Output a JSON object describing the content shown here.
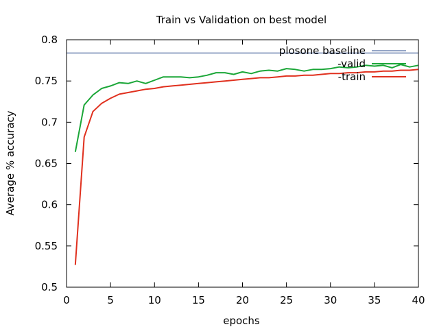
{
  "chart_data": {
    "type": "line",
    "title": "Train vs Validation on best model",
    "xlabel": "epochs",
    "ylabel": "Average % accuracy",
    "xlim": [
      0,
      40
    ],
    "ylim": [
      0.5,
      0.8
    ],
    "xticks": [
      0,
      5,
      10,
      15,
      20,
      25,
      30,
      35,
      40
    ],
    "yticks": [
      0.5,
      0.55,
      0.6,
      0.65,
      0.7,
      0.75,
      0.8
    ],
    "xtick_labels": [
      "0",
      "5",
      "10",
      "15",
      "20",
      "25",
      "30",
      "35",
      "40"
    ],
    "ytick_labels": [
      "0.5",
      "0.55",
      "0.6",
      "0.65",
      "0.7",
      "0.75",
      "0.8"
    ],
    "grid": false,
    "legend_position": "top-right",
    "baseline": {
      "name": "plosone baseline",
      "value": 0.784,
      "color": "#2a4b8d"
    },
    "series": [
      {
        "name": "-valid",
        "color": "#1aa637",
        "x": [
          1,
          2,
          3,
          4,
          5,
          6,
          7,
          8,
          9,
          10,
          11,
          12,
          13,
          14,
          15,
          16,
          17,
          18,
          19,
          20,
          21,
          22,
          23,
          24,
          25,
          26,
          27,
          28,
          29,
          30,
          31,
          32,
          33,
          34,
          35,
          36,
          37,
          38,
          39,
          40
        ],
        "y": [
          0.664,
          0.721,
          0.733,
          0.741,
          0.744,
          0.748,
          0.747,
          0.75,
          0.747,
          0.751,
          0.755,
          0.755,
          0.755,
          0.754,
          0.755,
          0.757,
          0.76,
          0.76,
          0.758,
          0.761,
          0.759,
          0.762,
          0.763,
          0.762,
          0.765,
          0.764,
          0.762,
          0.764,
          0.764,
          0.765,
          0.767,
          0.766,
          0.767,
          0.769,
          0.768,
          0.769,
          0.766,
          0.77,
          0.767,
          0.769
        ]
      },
      {
        "name": "-train",
        "color": "#e0301e",
        "x": [
          1,
          2,
          3,
          4,
          5,
          6,
          7,
          8,
          9,
          10,
          11,
          12,
          13,
          14,
          15,
          16,
          17,
          18,
          19,
          20,
          21,
          22,
          23,
          24,
          25,
          26,
          27,
          28,
          29,
          30,
          31,
          32,
          33,
          34,
          35,
          36,
          37,
          38,
          39,
          40
        ],
        "y": [
          0.527,
          0.682,
          0.713,
          0.723,
          0.729,
          0.734,
          0.736,
          0.738,
          0.74,
          0.741,
          0.743,
          0.744,
          0.745,
          0.746,
          0.747,
          0.748,
          0.749,
          0.75,
          0.751,
          0.752,
          0.753,
          0.754,
          0.754,
          0.755,
          0.756,
          0.756,
          0.757,
          0.757,
          0.758,
          0.759,
          0.759,
          0.76,
          0.76,
          0.761,
          0.761,
          0.762,
          0.762,
          0.763,
          0.763,
          0.764
        ]
      }
    ]
  }
}
